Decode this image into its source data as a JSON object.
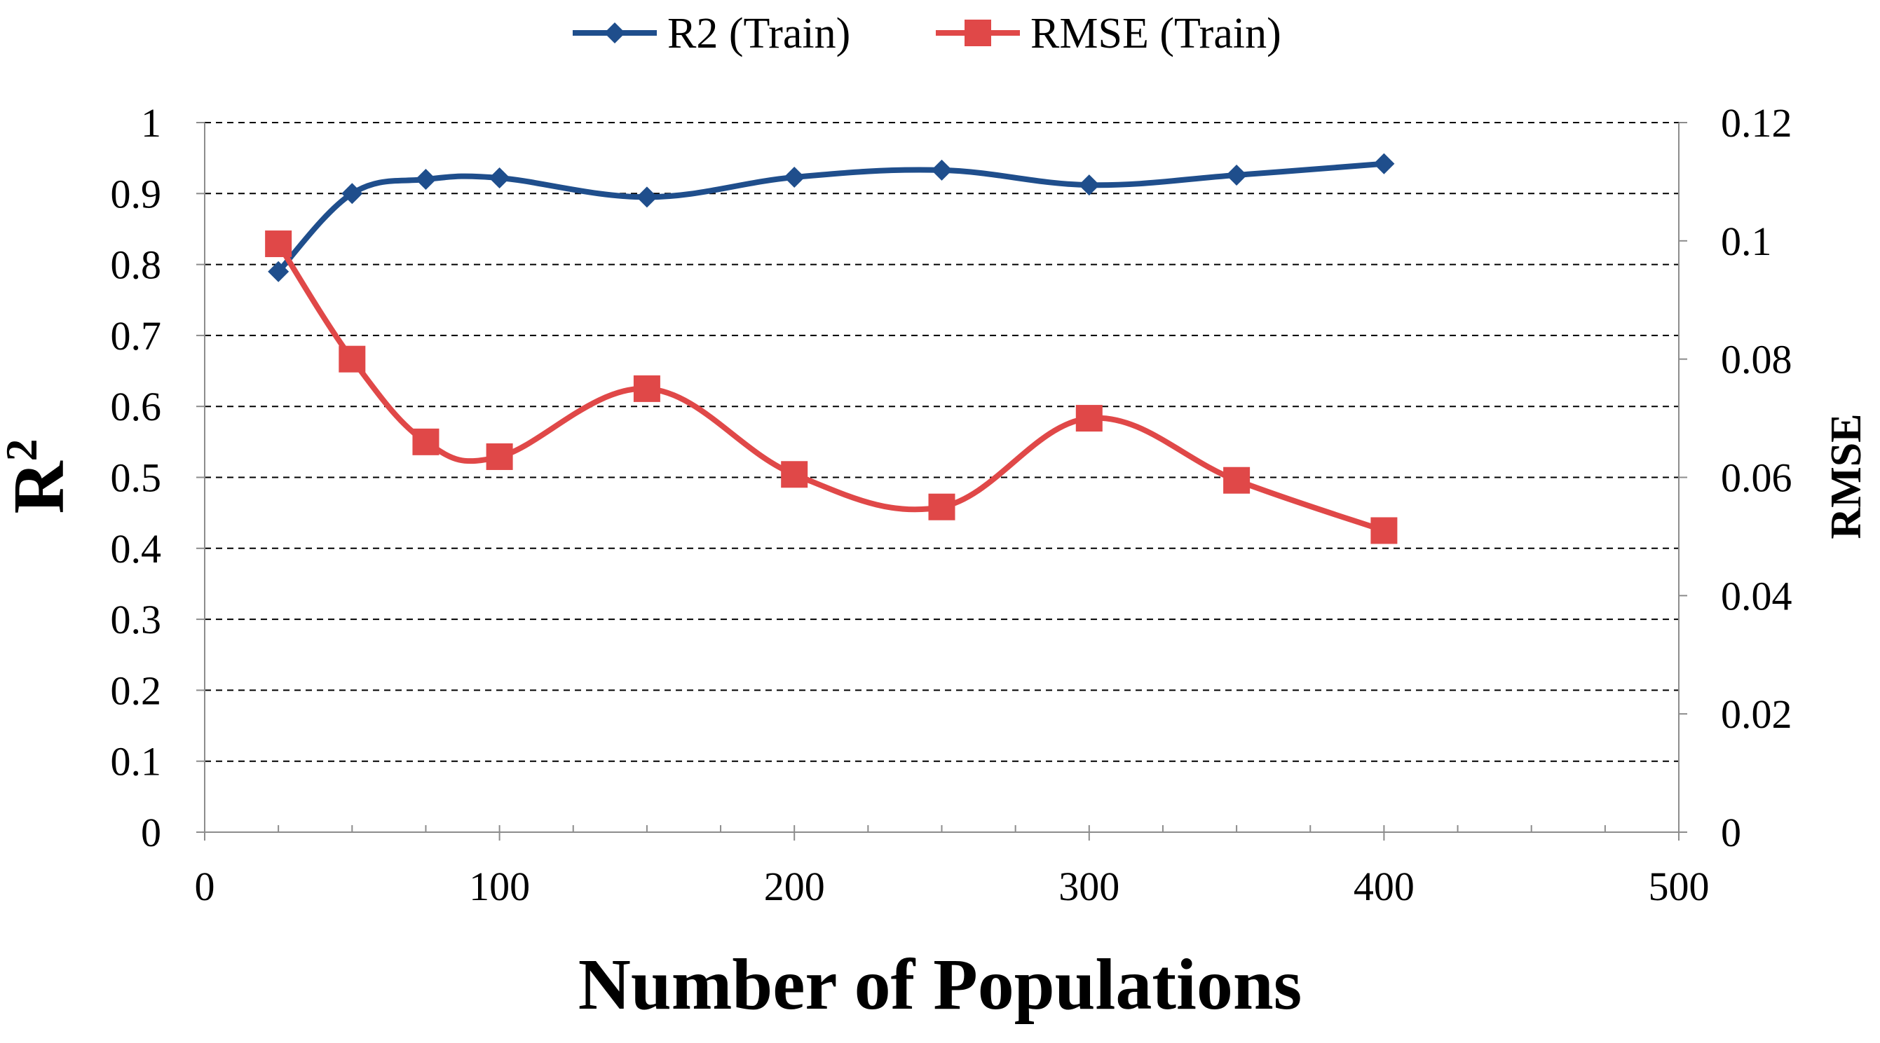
{
  "chart_data": {
    "type": "line",
    "title": "",
    "xlabel": "Number of Populations",
    "ylabel": "R",
    "ylabel_superscript": "2",
    "y2label": "RMSE",
    "xlim": [
      0,
      500
    ],
    "ylim": [
      0,
      1
    ],
    "y2lim": [
      0,
      0.12
    ],
    "x_ticks": [
      0,
      100,
      200,
      300,
      400,
      500
    ],
    "x_tick_labels": [
      "0",
      "100",
      "200",
      "300",
      "400",
      "500"
    ],
    "y_ticks": [
      0,
      0.1,
      0.2,
      0.3,
      0.4,
      0.5,
      0.6,
      0.7,
      0.8,
      0.9,
      1
    ],
    "y_tick_labels": [
      "0",
      "0.1",
      "0.2",
      "0.3",
      "0.4",
      "0.5",
      "0.6",
      "0.7",
      "0.8",
      "0.9",
      "1"
    ],
    "y2_ticks": [
      0,
      0.02,
      0.04,
      0.06,
      0.08,
      0.1,
      0.12
    ],
    "y2_tick_labels": [
      "0",
      "0.02",
      "0.04",
      "0.06",
      "0.08",
      "0.1",
      "0.12"
    ],
    "grid": true,
    "legend_position": "top-center",
    "x": [
      25,
      50,
      75,
      100,
      150,
      200,
      250,
      300,
      350,
      400
    ],
    "series": [
      {
        "name": "R2 (Train)",
        "axis": "left",
        "marker": "diamond",
        "color": "#1f4e8c",
        "values": [
          0.79,
          0.9,
          0.92,
          0.922,
          0.895,
          0.923,
          0.933,
          0.912,
          0.926,
          0.942
        ]
      },
      {
        "name": "RMSE (Train)",
        "axis": "right",
        "marker": "square",
        "color": "#e04848",
        "values": [
          0.0995,
          0.08,
          0.066,
          0.0635,
          0.075,
          0.0605,
          0.055,
          0.07,
          0.0595,
          0.051
        ]
      }
    ]
  }
}
